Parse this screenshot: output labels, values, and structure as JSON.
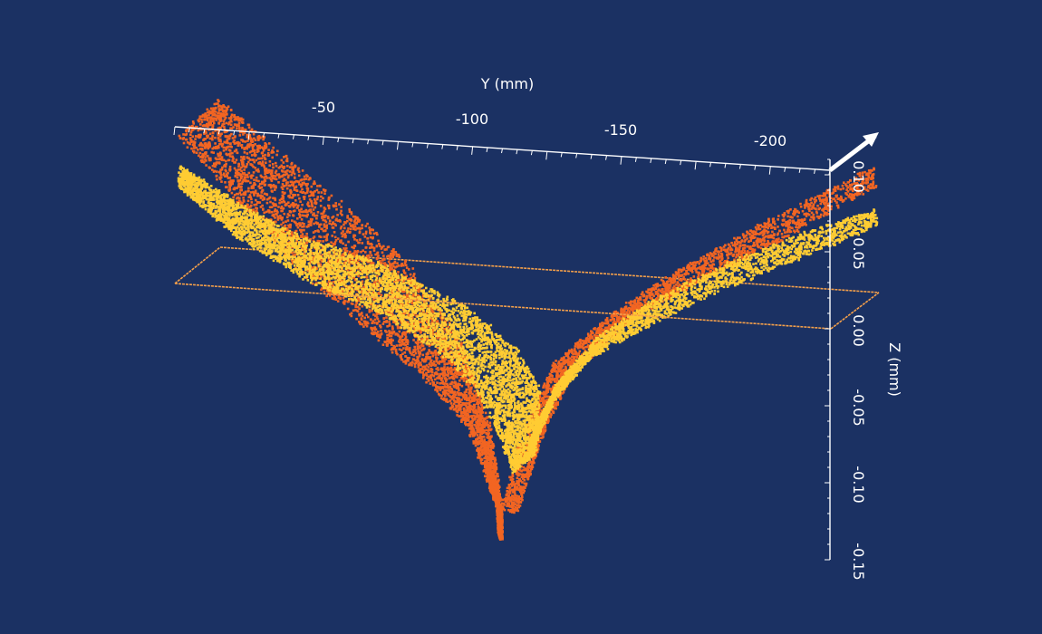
{
  "chart_data": {
    "type": "scatter",
    "projection": "3d",
    "title": "",
    "xlabel": "Y (mm)",
    "ylabel": "Z (mm)",
    "x_ticks": [
      "-50",
      "-100",
      "-150",
      "-200"
    ],
    "y_ticks": [
      "0.10",
      "0.05",
      "0.00",
      "-0.05",
      "-0.10",
      "-0.15"
    ],
    "ylim": [
      -0.15,
      0.12
    ],
    "zero_plane": true,
    "colors": {
      "background": "#1b3163",
      "front_cloud": "#ffcc33",
      "back_cloud": "#f26522",
      "plane": "#f5a04a",
      "axis": "#ffffff"
    },
    "series": [
      {
        "x": [
          -10,
          -30,
          -50,
          -70,
          -90,
          -105,
          -110,
          -118,
          -125,
          -135,
          -150,
          -170,
          -190,
          -215
        ],
        "y": [
          0.105,
          0.09,
          0.07,
          0.045,
          0.015,
          -0.04,
          -0.085,
          -0.12,
          -0.08,
          -0.03,
          0.005,
          0.03,
          0.055,
          0.09
        ]
      },
      {
        "x": [
          -10,
          -30,
          -50,
          -70,
          -90,
          -105,
          -110,
          -118,
          -125,
          -135,
          -150,
          -170,
          -190,
          -215
        ],
        "y": [
          0.085,
          0.07,
          0.05,
          0.03,
          0.01,
          -0.02,
          -0.06,
          -0.09,
          -0.07,
          -0.03,
          0.0,
          0.025,
          0.04,
          0.07
        ]
      }
    ]
  }
}
